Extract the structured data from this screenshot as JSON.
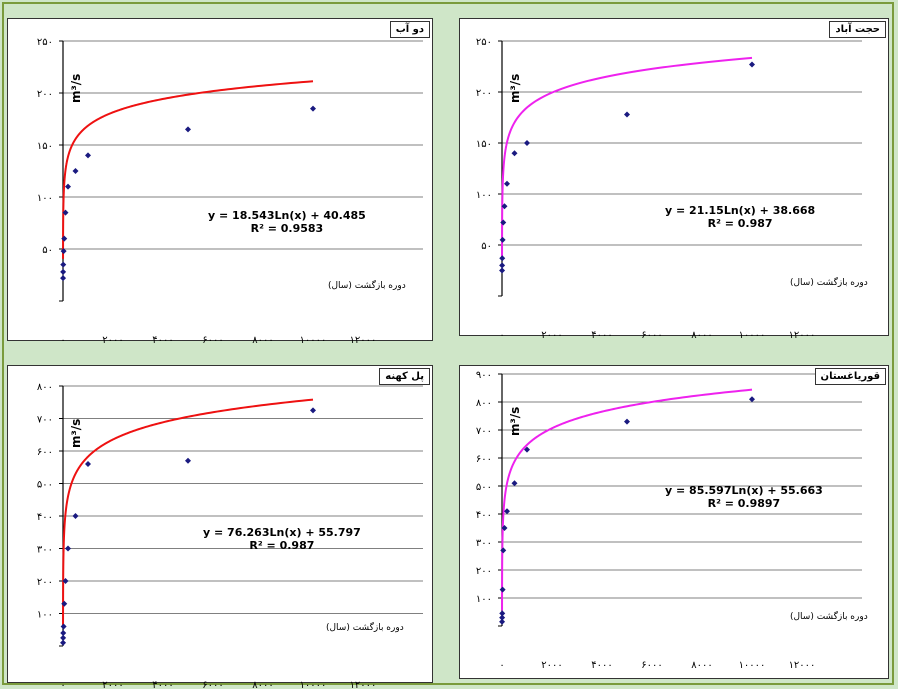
{
  "chart_data": [
    {
      "type": "scatter",
      "station_name": "دو آب",
      "ylabel_unit": "m³/s",
      "xlabel": "دوره بازگشت (سال)",
      "equation": "y = 18.543Ln(x) + 40.485",
      "r2": "R² = 0.9583",
      "coef_a": 18.543,
      "coef_b": 40.485,
      "ylim": [
        0,
        250
      ],
      "yticks": [
        0,
        50,
        100,
        150,
        200,
        250
      ],
      "xlim": [
        0,
        12000
      ],
      "xticks": [
        0,
        2000,
        4000,
        6000,
        8000,
        10000,
        12000
      ],
      "ytick_labels": [
        "",
        "۵۰",
        "۱۰۰",
        "۱۵۰",
        "۲۰۰",
        "۲۵۰"
      ],
      "xtick_labels": [
        "۰",
        "۲۰۰۰",
        "۴۰۰۰",
        "۶۰۰۰",
        "۸۰۰۰",
        "۱۰۰۰۰",
        "۱۲۰۰۰"
      ],
      "curve_color": "#ee1111",
      "points": [
        [
          2,
          22
        ],
        [
          5,
          28
        ],
        [
          10,
          35
        ],
        [
          25,
          48
        ],
        [
          50,
          60
        ],
        [
          100,
          85
        ],
        [
          200,
          110
        ],
        [
          500,
          125
        ],
        [
          1000,
          140
        ],
        [
          5000,
          165
        ],
        [
          10000,
          185
        ]
      ]
    },
    {
      "type": "scatter",
      "station_name": "حجت آباد",
      "ylabel_unit": "m³/s",
      "xlabel": "دوره بازگشت (سال)",
      "equation": "y = 21.15Ln(x) + 38.668",
      "r2": "R² = 0.987",
      "coef_a": 21.15,
      "coef_b": 38.668,
      "ylim": [
        0,
        250
      ],
      "yticks": [
        0,
        50,
        100,
        150,
        200,
        250
      ],
      "xlim": [
        0,
        12000
      ],
      "xticks": [
        0,
        2000,
        4000,
        6000,
        8000,
        10000,
        12000
      ],
      "ytick_labels": [
        "",
        "۵۰",
        "۱۰۰",
        "۱۵۰",
        "۲۰۰",
        "۲۵۰"
      ],
      "xtick_labels": [
        "۰",
        "۲۰۰۰",
        "۴۰۰۰",
        "۶۰۰۰",
        "۸۰۰۰",
        "۱۰۰۰۰",
        "۱۲۰۰۰"
      ],
      "curve_color": "#ee22ee",
      "points": [
        [
          2,
          25
        ],
        [
          5,
          30
        ],
        [
          10,
          37
        ],
        [
          25,
          55
        ],
        [
          50,
          72
        ],
        [
          100,
          88
        ],
        [
          200,
          110
        ],
        [
          500,
          140
        ],
        [
          1000,
          150
        ],
        [
          5000,
          178
        ],
        [
          10000,
          227
        ]
      ]
    },
    {
      "type": "scatter",
      "station_name": "پل کهنه",
      "ylabel_unit": "m³/s",
      "xlabel": "دوره بازگشت (سال)",
      "equation": "y = 76.263Ln(x) + 55.797",
      "r2": "R² = 0.987",
      "coef_a": 76.263,
      "coef_b": 55.797,
      "ylim": [
        0,
        800
      ],
      "yticks": [
        0,
        100,
        200,
        300,
        400,
        500,
        600,
        700,
        800
      ],
      "xlim": [
        0,
        12000
      ],
      "xticks": [
        0,
        2000,
        4000,
        6000,
        8000,
        10000,
        12000
      ],
      "ytick_labels": [
        "",
        "۱۰۰",
        "۲۰۰",
        "۳۰۰",
        "۴۰۰",
        "۵۰۰",
        "۶۰۰",
        "۷۰۰",
        "۸۰۰"
      ],
      "xtick_labels": [
        "۰",
        "۲۰۰۰",
        "۴۰۰۰",
        "۶۰۰۰",
        "۸۰۰۰",
        "۱۰۰۰۰",
        "۱۲۰۰۰"
      ],
      "curve_color": "#ee1111",
      "points": [
        [
          2,
          10
        ],
        [
          5,
          25
        ],
        [
          10,
          40
        ],
        [
          25,
          60
        ],
        [
          50,
          130
        ],
        [
          100,
          200
        ],
        [
          200,
          300
        ],
        [
          500,
          400
        ],
        [
          1000,
          560
        ],
        [
          5000,
          570
        ],
        [
          10000,
          725
        ]
      ]
    },
    {
      "type": "scatter",
      "station_name": "قوریاغستان",
      "ylabel_unit": "m³/s",
      "xlabel": "دوره بازگشت (سال)",
      "equation": "y = 85.597Ln(x) + 55.663",
      "r2": "R² = 0.9897",
      "coef_a": 85.597,
      "coef_b": 55.663,
      "ylim": [
        0,
        900
      ],
      "yticks": [
        0,
        100,
        200,
        300,
        400,
        500,
        600,
        700,
        800,
        900
      ],
      "xlim": [
        0,
        12000
      ],
      "xticks": [
        0,
        2000,
        4000,
        6000,
        8000,
        10000,
        12000
      ],
      "ytick_labels": [
        "",
        "۱۰۰",
        "۲۰۰",
        "۳۰۰",
        "۴۰۰",
        "۵۰۰",
        "۶۰۰",
        "۷۰۰",
        "۸۰۰",
        "۹۰۰"
      ],
      "xtick_labels": [
        "۰",
        "۲۰۰۰",
        "۴۰۰۰",
        "۶۰۰۰",
        "۸۰۰۰",
        "۱۰۰۰۰",
        "۱۲۰۰۰"
      ],
      "curve_color": "#ee22ee",
      "points": [
        [
          2,
          15
        ],
        [
          5,
          30
        ],
        [
          10,
          45
        ],
        [
          25,
          130
        ],
        [
          50,
          270
        ],
        [
          100,
          350
        ],
        [
          200,
          410
        ],
        [
          500,
          510
        ],
        [
          1000,
          630
        ],
        [
          5000,
          730
        ],
        [
          10000,
          810
        ]
      ]
    }
  ]
}
